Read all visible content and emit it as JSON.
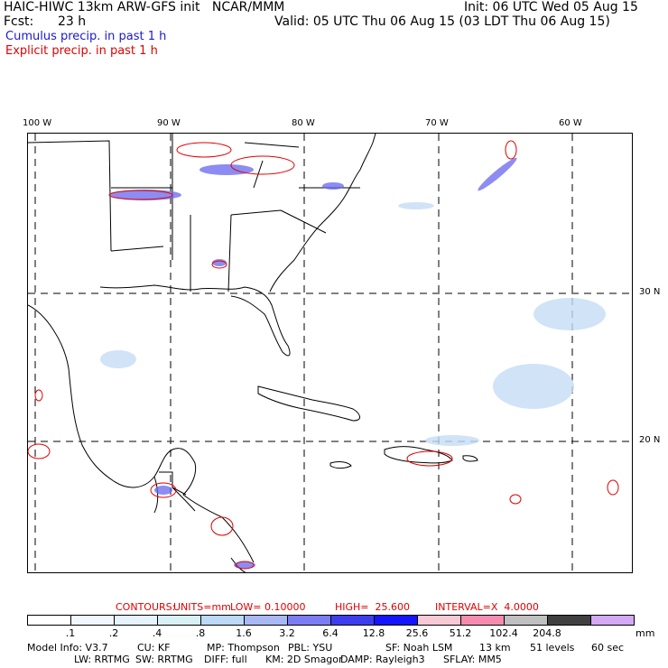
{
  "header": {
    "title": "HAIC-HIWC 13km ARW-GFS init   NCAR/MMM",
    "init": "Init: 06 UTC Wed 05 Aug 15",
    "fcst_label": "Fcst:",
    "fcst_value": "23 h",
    "valid": "Valid: 05 UTC Thu 06 Aug 15 (03 LDT Thu 06 Aug 15)",
    "legend_cumulus": "Cumulus precip. in past 1 h",
    "legend_explicit": "Explicit precip. in past 1 h"
  },
  "axes": {
    "lon_labels": [
      "100 W",
      "90 W",
      "80 W",
      "70 W",
      "60 W"
    ],
    "lat_labels": [
      "30 N",
      "20 N"
    ]
  },
  "contours": {
    "label": "CONTOURS:",
    "units": "UNITS=mm",
    "low": "LOW= 0.10000",
    "high": "HIGH=  25.600",
    "interval": "INTERVAL=X  4.0000"
  },
  "colorbar": {
    "labels": [
      ".1",
      ".2",
      ".4",
      ".8",
      "1.6",
      "3.2",
      "6.4",
      "12.8",
      "25.6",
      "51.2",
      "102.4",
      "204.8"
    ],
    "unit": "mm",
    "colors": [
      "#ffffff",
      "#f0f8ff",
      "#e6f3ff",
      "#d9f0f5",
      "#bcd9f5",
      "#a8b8f5",
      "#7b7df5",
      "#3d3df0",
      "#1414ff",
      "#f7c9d4",
      "#f58cb0",
      "#c0c0c0",
      "#404040",
      "#d4a8f5"
    ]
  },
  "model_info": {
    "line1": [
      "Model Info: V3.7",
      "CU: KF",
      "MP: Thompson",
      "PBL: YSU",
      "SF: Noah LSM",
      "13 km",
      "51 levels",
      "60 sec"
    ],
    "line2": [
      "LW: RRTMG",
      "SW: RRTMG",
      "DIFF: full",
      "KM: 2D Smagor",
      "DAMP: Rayleigh3",
      "SFLAY: MM5"
    ]
  }
}
